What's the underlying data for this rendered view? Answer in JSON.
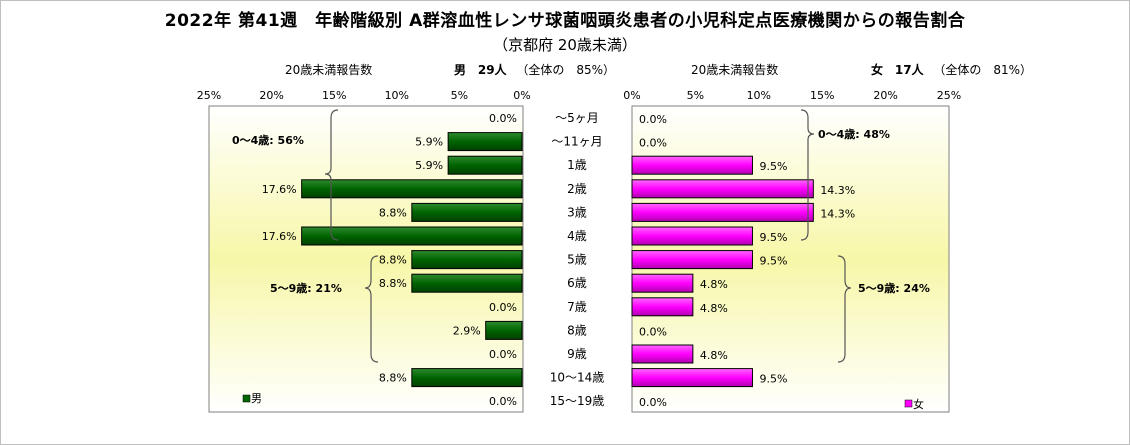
{
  "title": "2022年 第41週　年齢階級別 A群溶血性レンサ球菌咽頭炎患者の小児科定点医療機関からの報告割合",
  "subtitle": "（京都府 20歳未満）",
  "headers": {
    "male_axis_label": "20歳未満報告数",
    "male_sex": "男",
    "male_count": "29人",
    "male_share": "（全体の　85%）",
    "female_axis_label": "20歳未満報告数",
    "female_sex": "女",
    "female_count": "17人",
    "female_share": "（全体の　81%）"
  },
  "chart_data": {
    "type": "bar",
    "orientation": "horizontal-butterfly",
    "categories": [
      "～5ヶ月",
      "～11ヶ月",
      "1歳",
      "2歳",
      "3歳",
      "4歳",
      "5歳",
      "6歳",
      "7歳",
      "8歳",
      "9歳",
      "10～14歳",
      "15～19歳"
    ],
    "series": [
      {
        "name": "男",
        "color": "#006400",
        "values": [
          0.0,
          5.9,
          5.9,
          17.6,
          8.8,
          17.6,
          8.8,
          8.8,
          0.0,
          2.9,
          0.0,
          8.8,
          0.0
        ]
      },
      {
        "name": "女",
        "color": "#ff00ff",
        "values": [
          0.0,
          0.0,
          9.5,
          14.3,
          14.3,
          9.5,
          9.5,
          4.8,
          4.8,
          0.0,
          4.8,
          9.5,
          0.0
        ]
      }
    ],
    "xlim": [
      0,
      25
    ],
    "ticks": [
      "25%",
      "20%",
      "15%",
      "10%",
      "5%",
      "0%"
    ],
    "ticks_female": [
      "0%",
      "5%",
      "10%",
      "15%",
      "20%",
      "25%"
    ],
    "value_suffix": "%",
    "annotations": {
      "male_0_4": "0～4歳: 56%",
      "male_5_9": "5～9歳: 21%",
      "female_0_4": "0～4歳: 48%",
      "female_5_9": "5～9歳: 24%"
    },
    "legend_male": "男",
    "legend_female": "女",
    "legend_position": "bottom-left / bottom-right"
  }
}
